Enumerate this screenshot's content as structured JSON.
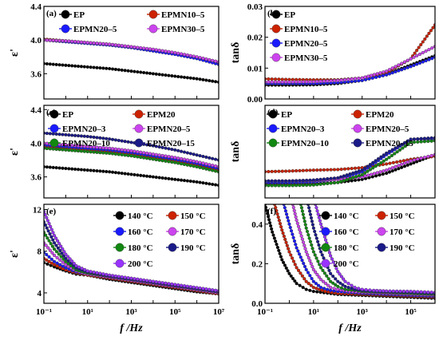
{
  "chart_data": [
    {
      "id": "a",
      "type": "line",
      "panel_label": "(a)",
      "ylabel": "ε'",
      "xlabel": "",
      "xscale": "log",
      "xlim": [
        0.1,
        10000000
      ],
      "ylim": [
        3.3,
        4.4
      ],
      "x_ticks": [],
      "y_ticks": [
        "3.6",
        "4.0",
        "4.4"
      ],
      "legend_columns": 2,
      "series": [
        {
          "name": "EP",
          "color": "#000000",
          "x": [
            0.1,
            1,
            10,
            100,
            1000,
            10000,
            100000,
            1000000,
            10000000
          ],
          "values": [
            3.72,
            3.7,
            3.68,
            3.66,
            3.63,
            3.6,
            3.57,
            3.54,
            3.5
          ]
        },
        {
          "name": "EPMN10–5",
          "color": "#cc2200",
          "x": [
            0.1,
            1,
            10,
            100,
            1000,
            10000,
            100000,
            1000000,
            10000000
          ],
          "values": [
            4.01,
            3.99,
            3.97,
            3.95,
            3.92,
            3.88,
            3.84,
            3.79,
            3.72
          ]
        },
        {
          "name": "EPMN20–5",
          "color": "#1a1aff",
          "x": [
            0.1,
            1,
            10,
            100,
            1000,
            10000,
            100000,
            1000000,
            10000000
          ],
          "values": [
            4.0,
            3.98,
            3.96,
            3.94,
            3.91,
            3.87,
            3.83,
            3.78,
            3.71
          ]
        },
        {
          "name": "EPMN30–5",
          "color": "#cc44ee",
          "x": [
            0.1,
            1,
            10,
            100,
            1000,
            10000,
            100000,
            1000000,
            10000000
          ],
          "values": [
            4.0,
            3.99,
            3.97,
            3.95,
            3.92,
            3.89,
            3.85,
            3.8,
            3.74
          ]
        }
      ]
    },
    {
      "id": "b",
      "type": "line",
      "panel_label": "(b)",
      "ylabel": "tanδ",
      "xlabel": "",
      "xscale": "log",
      "xlim": [
        0.1,
        1000000
      ],
      "ylim": [
        0,
        0.03
      ],
      "x_ticks": [],
      "y_ticks": [
        "0.00",
        "0.01",
        "0.02",
        "0.03"
      ],
      "legend_columns": 1,
      "series": [
        {
          "name": "EP",
          "color": "#000000",
          "x": [
            0.1,
            1,
            10,
            100,
            1000,
            10000,
            100000,
            1000000
          ],
          "values": [
            0.0045,
            0.0045,
            0.0046,
            0.005,
            0.006,
            0.008,
            0.011,
            0.014
          ]
        },
        {
          "name": "EPMN10–5",
          "color": "#cc2200",
          "x": [
            0.1,
            1,
            10,
            100,
            1000,
            10000,
            100000,
            1000000
          ],
          "values": [
            0.0065,
            0.0063,
            0.0062,
            0.0062,
            0.0068,
            0.0085,
            0.013,
            0.024
          ]
        },
        {
          "name": "EPMN20–5",
          "color": "#1a1aff",
          "x": [
            0.1,
            1,
            10,
            100,
            1000,
            10000,
            100000,
            1000000
          ],
          "values": [
            0.005,
            0.005,
            0.005,
            0.0053,
            0.006,
            0.0078,
            0.0105,
            0.0135
          ]
        },
        {
          "name": "EPMN30–5",
          "color": "#cc44ee",
          "x": [
            0.1,
            1,
            10,
            100,
            1000,
            10000,
            100000,
            1000000
          ],
          "values": [
            0.0055,
            0.0055,
            0.0056,
            0.006,
            0.0068,
            0.009,
            0.013,
            0.017
          ]
        }
      ]
    },
    {
      "id": "c",
      "type": "line",
      "panel_label": "(c)",
      "ylabel": "ε'",
      "xlabel": "",
      "xscale": "log",
      "xlim": [
        0.1,
        10000000
      ],
      "ylim": [
        3.35,
        4.45
      ],
      "x_ticks": [],
      "y_ticks": [
        "3.6",
        "4.0",
        "4.4"
      ],
      "legend_columns": 2,
      "series": [
        {
          "name": "EP",
          "color": "#000000",
          "x": [
            0.1,
            1,
            10,
            100,
            1000,
            10000,
            100000,
            1000000,
            10000000
          ],
          "values": [
            3.72,
            3.7,
            3.68,
            3.66,
            3.63,
            3.6,
            3.57,
            3.54,
            3.5
          ]
        },
        {
          "name": "EPM20",
          "color": "#cc2200",
          "x": [
            0.1,
            1,
            10,
            100,
            1000,
            10000,
            100000,
            1000000,
            10000000
          ],
          "values": [
            3.96,
            3.94,
            3.92,
            3.9,
            3.87,
            3.83,
            3.79,
            3.74,
            3.68
          ]
        },
        {
          "name": "EPMN20–3",
          "color": "#1a1aff",
          "x": [
            0.1,
            1,
            10,
            100,
            1000,
            10000,
            100000,
            1000000,
            10000000
          ],
          "values": [
            3.98,
            3.96,
            3.94,
            3.92,
            3.89,
            3.85,
            3.81,
            3.76,
            3.7
          ]
        },
        {
          "name": "EPMN20–5",
          "color": "#cc44ee",
          "x": [
            0.1,
            1,
            10,
            100,
            1000,
            10000,
            100000,
            1000000,
            10000000
          ],
          "values": [
            4.0,
            3.98,
            3.96,
            3.94,
            3.91,
            3.87,
            3.83,
            3.78,
            3.72
          ]
        },
        {
          "name": "EPMN20–10",
          "color": "#118811",
          "x": [
            0.1,
            1,
            10,
            100,
            1000,
            10000,
            100000,
            1000000,
            10000000
          ],
          "values": [
            3.94,
            3.92,
            3.9,
            3.88,
            3.85,
            3.81,
            3.77,
            3.72,
            3.66
          ]
        },
        {
          "name": "EPMN20–15",
          "color": "#1a1a88",
          "x": [
            0.1,
            1,
            10,
            100,
            1000,
            10000,
            100000,
            1000000,
            10000000
          ],
          "values": [
            4.12,
            4.1,
            4.08,
            4.05,
            4.01,
            3.97,
            3.92,
            3.86,
            3.8
          ]
        }
      ]
    },
    {
      "id": "d",
      "type": "line",
      "panel_label": "(d)",
      "ylabel": "tanδ",
      "xlabel": "",
      "xscale": "log",
      "xlim": [
        0.1,
        1000000
      ],
      "ylim": [
        0,
        0.03
      ],
      "x_ticks": [],
      "y_ticks": [],
      "legend_columns": 2,
      "series": [
        {
          "name": "EP",
          "color": "#000000",
          "x": [
            0.1,
            1,
            10,
            100,
            1000,
            10000,
            100000,
            1000000
          ],
          "values": [
            0.0045,
            0.0045,
            0.0046,
            0.005,
            0.006,
            0.008,
            0.011,
            0.014
          ]
        },
        {
          "name": "EPM20",
          "color": "#cc2200",
          "x": [
            0.1,
            1,
            10,
            100,
            1000,
            10000,
            100000,
            1000000
          ],
          "values": [
            0.0085,
            0.0087,
            0.009,
            0.0092,
            0.0098,
            0.011,
            0.0125,
            0.0135
          ]
        },
        {
          "name": "EPMN20–3",
          "color": "#1a1aff",
          "x": [
            0.1,
            1,
            10,
            100,
            1000,
            10000,
            100000,
            1000000
          ],
          "values": [
            0.005,
            0.005,
            0.0052,
            0.006,
            0.0085,
            0.014,
            0.019,
            0.019
          ]
        },
        {
          "name": "EPMN20–5",
          "color": "#cc44ee",
          "x": [
            0.1,
            1,
            10,
            100,
            1000,
            10000,
            100000,
            1000000
          ],
          "values": [
            0.0055,
            0.0055,
            0.0056,
            0.006,
            0.0068,
            0.009,
            0.012,
            0.014
          ]
        },
        {
          "name": "EPMN20–10",
          "color": "#118811",
          "x": [
            0.1,
            1,
            10,
            100,
            1000,
            10000,
            100000,
            1000000
          ],
          "values": [
            0.004,
            0.004,
            0.0042,
            0.005,
            0.0075,
            0.0125,
            0.018,
            0.0185
          ]
        },
        {
          "name": "EPMN20–15",
          "color": "#1a1a88",
          "x": [
            0.1,
            1,
            10,
            100,
            1000,
            10000,
            100000,
            1000000
          ],
          "values": [
            0.0055,
            0.0055,
            0.0058,
            0.0065,
            0.009,
            0.0145,
            0.019,
            0.0195
          ]
        }
      ]
    },
    {
      "id": "e",
      "type": "line",
      "panel_label": "(e)",
      "ylabel": "ε'",
      "xlabel": "f /Hz",
      "xscale": "log",
      "xlim": [
        0.1,
        10000000
      ],
      "ylim": [
        3,
        12.5
      ],
      "x_ticks": [
        "10⁻¹",
        "10¹",
        "10³",
        "10⁵",
        "10⁷"
      ],
      "y_ticks": [
        "4",
        "8",
        "12"
      ],
      "legend_columns": 2,
      "series": [
        {
          "name": "140 °C",
          "color": "#000000",
          "x": [
            0.1,
            0.3,
            1,
            3,
            10,
            100,
            1000,
            10000,
            100000,
            1000000,
            10000000
          ],
          "values": [
            6.9,
            6.5,
            6.1,
            5.8,
            5.7,
            5.3,
            5.0,
            4.7,
            4.4,
            4.1,
            3.9
          ]
        },
        {
          "name": "150 °C",
          "color": "#cc2200",
          "x": [
            0.1,
            0.3,
            1,
            3,
            10,
            100,
            1000,
            10000,
            100000,
            1000000,
            10000000
          ],
          "values": [
            7.3,
            6.7,
            6.2,
            5.9,
            5.7,
            5.4,
            5.1,
            4.8,
            4.5,
            4.2,
            3.9
          ]
        },
        {
          "name": "160 °C",
          "color": "#1a1aff",
          "x": [
            0.1,
            0.3,
            1,
            3,
            10,
            100,
            1000,
            10000,
            100000,
            1000000,
            10000000
          ],
          "values": [
            7.9,
            7.0,
            6.4,
            6.0,
            5.8,
            5.5,
            5.2,
            4.9,
            4.6,
            4.3,
            4.0
          ]
        },
        {
          "name": "170 °C",
          "color": "#cc44ee",
          "x": [
            0.1,
            0.3,
            1,
            3,
            10,
            100,
            1000,
            10000,
            100000,
            1000000,
            10000000
          ],
          "values": [
            8.8,
            7.6,
            6.7,
            6.1,
            5.8,
            5.5,
            5.2,
            4.9,
            4.6,
            4.3,
            4.0
          ]
        },
        {
          "name": "180 °C",
          "color": "#118811",
          "x": [
            0.1,
            0.3,
            1,
            3,
            10,
            100,
            1000,
            10000,
            100000,
            1000000,
            10000000
          ],
          "values": [
            9.8,
            8.2,
            7.0,
            6.2,
            5.9,
            5.6,
            5.3,
            5.0,
            4.7,
            4.4,
            4.1
          ]
        },
        {
          "name": "190 °C",
          "color": "#1a1a88",
          "x": [
            0.1,
            0.3,
            1,
            3,
            10,
            100,
            1000,
            10000,
            100000,
            1000000,
            10000000
          ],
          "values": [
            10.8,
            8.8,
            7.3,
            6.4,
            6.0,
            5.6,
            5.3,
            5.0,
            4.7,
            4.4,
            4.1
          ]
        },
        {
          "name": "200 °C",
          "color": "#9933ff",
          "x": [
            0.1,
            0.3,
            1,
            3,
            10,
            100,
            1000,
            10000,
            100000,
            1000000,
            10000000
          ],
          "values": [
            11.8,
            9.5,
            7.7,
            6.6,
            6.1,
            5.7,
            5.4,
            5.1,
            4.8,
            4.5,
            4.2
          ]
        }
      ]
    },
    {
      "id": "f",
      "type": "line",
      "panel_label": "(f)",
      "ylabel": "tanδ",
      "xlabel": "f /Hz",
      "xscale": "log",
      "xlim": [
        0.1,
        1000000
      ],
      "ylim": [
        0,
        0.5
      ],
      "x_ticks": [
        "10⁻¹",
        "10¹",
        "10³",
        "10⁵"
      ],
      "y_ticks": [
        "0.0",
        "0.2",
        "0.4"
      ],
      "legend_columns": 2,
      "series": [
        {
          "name": "140 °C",
          "color": "#000000",
          "x": [
            0.1,
            0.2,
            0.5,
            1,
            2,
            5,
            10,
            100,
            1000,
            10000,
            100000,
            1000000
          ],
          "values": [
            0.5,
            0.36,
            0.22,
            0.15,
            0.1,
            0.07,
            0.06,
            0.045,
            0.04,
            0.035,
            0.03,
            0.025
          ]
        },
        {
          "name": "150 °C",
          "color": "#cc2200",
          "x": [
            0.25,
            0.5,
            1,
            2,
            5,
            10,
            30,
            100,
            1000,
            10000,
            100000,
            1000000
          ],
          "values": [
            0.5,
            0.37,
            0.26,
            0.18,
            0.11,
            0.08,
            0.06,
            0.05,
            0.045,
            0.04,
            0.035,
            0.03
          ]
        },
        {
          "name": "160 °C",
          "color": "#1a1aff",
          "x": [
            0.6,
            1,
            2,
            5,
            10,
            20,
            50,
            100,
            1000,
            10000,
            100000,
            1000000
          ],
          "values": [
            0.5,
            0.4,
            0.28,
            0.17,
            0.11,
            0.08,
            0.065,
            0.06,
            0.05,
            0.045,
            0.04,
            0.035
          ]
        },
        {
          "name": "170 °C",
          "color": "#cc44ee",
          "x": [
            1.4,
            2,
            5,
            10,
            20,
            50,
            100,
            300,
            1000,
            10000,
            100000,
            1000000
          ],
          "values": [
            0.5,
            0.42,
            0.26,
            0.17,
            0.12,
            0.08,
            0.07,
            0.06,
            0.055,
            0.05,
            0.045,
            0.04
          ]
        },
        {
          "name": "180 °C",
          "color": "#118811",
          "x": [
            3,
            5,
            10,
            20,
            50,
            100,
            200,
            500,
            1000,
            10000,
            100000,
            1000000
          ],
          "values": [
            0.5,
            0.38,
            0.26,
            0.18,
            0.11,
            0.085,
            0.07,
            0.065,
            0.06,
            0.055,
            0.05,
            0.045
          ]
        },
        {
          "name": "190 °C",
          "color": "#1a1a88",
          "x": [
            6,
            10,
            20,
            50,
            100,
            200,
            500,
            1000,
            3000,
            10000,
            100000,
            1000000
          ],
          "values": [
            0.5,
            0.38,
            0.26,
            0.15,
            0.11,
            0.085,
            0.07,
            0.065,
            0.06,
            0.058,
            0.055,
            0.05
          ]
        },
        {
          "name": "200 °C",
          "color": "#9933ff",
          "x": [
            12,
            20,
            50,
            100,
            200,
            500,
            1000,
            3000,
            10000,
            100000,
            1000000
          ],
          "values": [
            0.5,
            0.4,
            0.24,
            0.16,
            0.11,
            0.08,
            0.07,
            0.065,
            0.062,
            0.06,
            0.055
          ]
        }
      ]
    }
  ]
}
